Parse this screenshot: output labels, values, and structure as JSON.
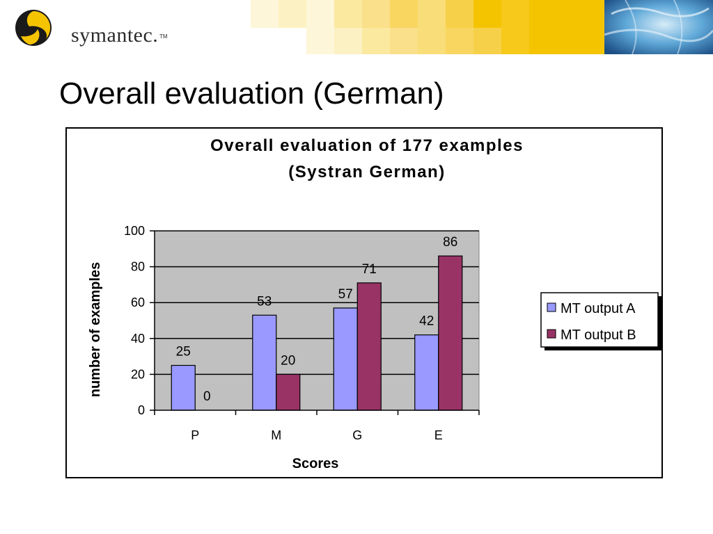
{
  "header": {
    "logo_text": "symantec.",
    "logo_tm": "TM",
    "icons": [
      "symantec-logo-icon",
      "globe-icon"
    ],
    "banner_color": "#f5c400"
  },
  "slide": {
    "title": "Overall evaluation (German)"
  },
  "chart_data": {
    "type": "bar",
    "title": "Overall evaluation of 177 examples",
    "subtitle": "(Systran German)",
    "xlabel": "Scores",
    "ylabel": "number of examples",
    "categories": [
      "P",
      "M",
      "G",
      "E"
    ],
    "series": [
      {
        "name": "MT output A",
        "values": [
          25,
          53,
          57,
          42
        ],
        "color": "#9999ff"
      },
      {
        "name": "MT output B",
        "values": [
          0,
          20,
          71,
          86
        ],
        "color": "#993366"
      }
    ],
    "ylim": [
      0,
      100
    ],
    "yticks": [
      0,
      20,
      40,
      60,
      80,
      100
    ],
    "grid": true,
    "plot_background": "#c0c0c0",
    "legend": "right"
  }
}
